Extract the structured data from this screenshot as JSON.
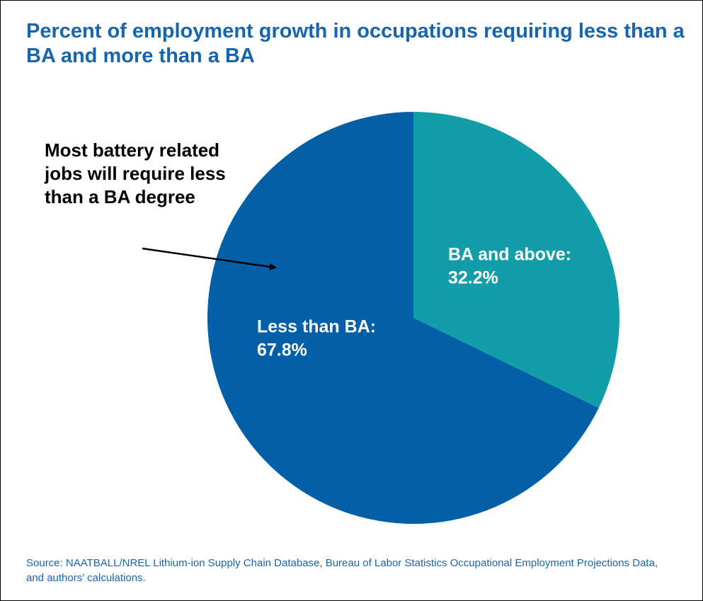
{
  "chart_data": {
    "type": "pie",
    "title": "Percent of employment growth in occupations requiring less than a BA and more than a BA",
    "categories": [
      "BA and above:",
      "Less than BA:"
    ],
    "values": [
      32.2,
      67.8
    ],
    "value_labels": [
      "32.2%",
      "67.8%"
    ],
    "colors": [
      "#129ea8",
      "#0360a8"
    ],
    "annotation": "Most battery related jobs will require less than a BA degree",
    "source": "Source: NAATBALL/NREL Lithium-ion Supply Chain Database, Bureau of Labor Statistics Occupational Employment Projections Data, and authors’ calculations."
  }
}
